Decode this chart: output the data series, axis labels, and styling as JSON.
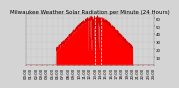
{
  "title": "Milwaukee Weather Solar Radiation per Minute (24 Hours)",
  "bg_color": "#d4d4d4",
  "plot_bg_color": "#d4d4d4",
  "fill_color": "#ff0000",
  "line_color": "#dd0000",
  "grid_color": "#b0b0b0",
  "dashed_line_color": "#ffffff",
  "ylim": [
    0,
    65
  ],
  "xlim": [
    0,
    1440
  ],
  "yticks": [
    10,
    20,
    30,
    40,
    50,
    60
  ],
  "ytick_labels": [
    "10",
    "20",
    "30",
    "40",
    "50",
    "60"
  ],
  "xtick_positions": [
    0,
    60,
    120,
    180,
    240,
    300,
    360,
    420,
    480,
    540,
    600,
    660,
    720,
    780,
    840,
    900,
    960,
    1020,
    1080,
    1140,
    1200,
    1260,
    1320,
    1380,
    1440
  ],
  "xtick_labels": [
    "00:00",
    "01:00",
    "02:00",
    "03:00",
    "04:00",
    "05:00",
    "06:00",
    "07:00",
    "08:00",
    "09:00",
    "10:00",
    "11:00",
    "12:00",
    "13:00",
    "14:00",
    "15:00",
    "16:00",
    "17:00",
    "18:00",
    "19:00",
    "20:00",
    "21:00",
    "22:00",
    "23:00",
    "24:00"
  ],
  "vlines": [
    780,
    840
  ],
  "title_fontsize": 4.0,
  "tick_fontsize": 2.8,
  "title_color": "#000000",
  "right_yaxis": true
}
